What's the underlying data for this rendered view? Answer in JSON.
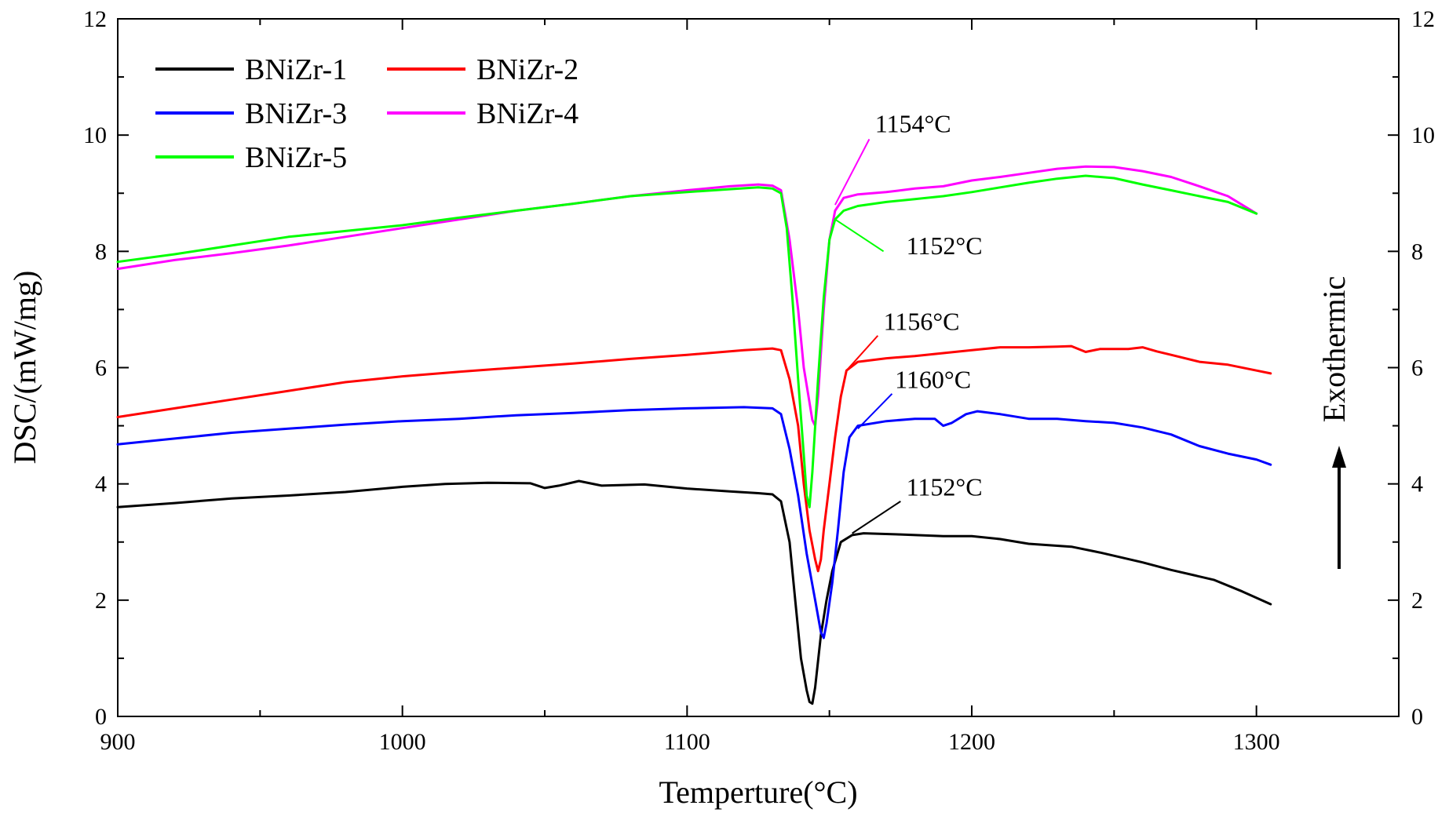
{
  "chart_data": {
    "type": "line",
    "title": "",
    "xlabel": "Temperture(°C)",
    "ylabel": "DSC/(mW/mg)",
    "xlim": [
      900,
      1350
    ],
    "ylim": [
      0,
      12
    ],
    "x_ticks": [
      900,
      1000,
      1100,
      1200,
      1300
    ],
    "y_ticks": [
      0,
      2,
      4,
      6,
      8,
      10,
      12
    ],
    "y_tick_labels": [
      "0",
      "2",
      "4",
      "6",
      "8",
      "10",
      "12"
    ],
    "x_tick_labels": [
      "900",
      "1000",
      "1100",
      "1200",
      "1300"
    ],
    "grid": false,
    "legend_position": "top-left",
    "right_axis_label": "Exothermic",
    "series": [
      {
        "name": "BNiZr-1",
        "color": "#000000",
        "points": [
          [
            900,
            3.6
          ],
          [
            920,
            3.67
          ],
          [
            940,
            3.75
          ],
          [
            960,
            3.8
          ],
          [
            980,
            3.86
          ],
          [
            1000,
            3.95
          ],
          [
            1015,
            4.0
          ],
          [
            1030,
            4.02
          ],
          [
            1045,
            4.01
          ],
          [
            1050,
            3.93
          ],
          [
            1055,
            3.97
          ],
          [
            1062,
            4.05
          ],
          [
            1070,
            3.97
          ],
          [
            1085,
            3.99
          ],
          [
            1100,
            3.92
          ],
          [
            1115,
            3.87
          ],
          [
            1125,
            3.84
          ],
          [
            1130,
            3.82
          ],
          [
            1133,
            3.7
          ],
          [
            1136,
            3.0
          ],
          [
            1138,
            2.0
          ],
          [
            1140,
            1.0
          ],
          [
            1142,
            0.45
          ],
          [
            1143,
            0.25
          ],
          [
            1144,
            0.22
          ],
          [
            1145,
            0.5
          ],
          [
            1147,
            1.4
          ],
          [
            1149,
            2.0
          ],
          [
            1151,
            2.5
          ],
          [
            1154,
            3.0
          ],
          [
            1158,
            3.12
          ],
          [
            1162,
            3.15
          ],
          [
            1175,
            3.13
          ],
          [
            1190,
            3.1
          ],
          [
            1200,
            3.1
          ],
          [
            1210,
            3.05
          ],
          [
            1220,
            2.97
          ],
          [
            1235,
            2.92
          ],
          [
            1245,
            2.82
          ],
          [
            1260,
            2.65
          ],
          [
            1270,
            2.52
          ],
          [
            1285,
            2.35
          ],
          [
            1295,
            2.15
          ],
          [
            1305,
            1.93
          ]
        ]
      },
      {
        "name": "BNiZr-2",
        "color": "#ff0000",
        "points": [
          [
            900,
            5.15
          ],
          [
            920,
            5.3
          ],
          [
            940,
            5.45
          ],
          [
            960,
            5.6
          ],
          [
            980,
            5.75
          ],
          [
            1000,
            5.85
          ],
          [
            1020,
            5.93
          ],
          [
            1040,
            6.0
          ],
          [
            1060,
            6.07
          ],
          [
            1080,
            6.15
          ],
          [
            1100,
            6.22
          ],
          [
            1120,
            6.3
          ],
          [
            1130,
            6.33
          ],
          [
            1133,
            6.3
          ],
          [
            1136,
            5.8
          ],
          [
            1139,
            5.0
          ],
          [
            1141,
            4.0
          ],
          [
            1143,
            3.2
          ],
          [
            1145,
            2.7
          ],
          [
            1146,
            2.5
          ],
          [
            1147,
            2.7
          ],
          [
            1148,
            3.2
          ],
          [
            1150,
            4.0
          ],
          [
            1152,
            4.8
          ],
          [
            1154,
            5.5
          ],
          [
            1156,
            5.95
          ],
          [
            1160,
            6.1
          ],
          [
            1170,
            6.16
          ],
          [
            1180,
            6.2
          ],
          [
            1190,
            6.25
          ],
          [
            1200,
            6.3
          ],
          [
            1210,
            6.35
          ],
          [
            1220,
            6.35
          ],
          [
            1230,
            6.36
          ],
          [
            1235,
            6.37
          ],
          [
            1240,
            6.27
          ],
          [
            1245,
            6.32
          ],
          [
            1255,
            6.32
          ],
          [
            1260,
            6.35
          ],
          [
            1265,
            6.28
          ],
          [
            1270,
            6.22
          ],
          [
            1280,
            6.1
          ],
          [
            1290,
            6.05
          ],
          [
            1300,
            5.95
          ],
          [
            1305,
            5.9
          ]
        ]
      },
      {
        "name": "BNiZr-3",
        "color": "#0000ff",
        "points": [
          [
            900,
            4.68
          ],
          [
            920,
            4.78
          ],
          [
            940,
            4.88
          ],
          [
            960,
            4.95
          ],
          [
            980,
            5.02
          ],
          [
            1000,
            5.08
          ],
          [
            1020,
            5.12
          ],
          [
            1040,
            5.18
          ],
          [
            1060,
            5.22
          ],
          [
            1080,
            5.27
          ],
          [
            1100,
            5.3
          ],
          [
            1120,
            5.32
          ],
          [
            1130,
            5.3
          ],
          [
            1133,
            5.2
          ],
          [
            1136,
            4.6
          ],
          [
            1139,
            3.8
          ],
          [
            1142,
            2.8
          ],
          [
            1145,
            2.0
          ],
          [
            1147,
            1.45
          ],
          [
            1148,
            1.35
          ],
          [
            1149,
            1.6
          ],
          [
            1151,
            2.3
          ],
          [
            1153,
            3.2
          ],
          [
            1155,
            4.2
          ],
          [
            1157,
            4.8
          ],
          [
            1160,
            5.0
          ],
          [
            1170,
            5.08
          ],
          [
            1180,
            5.12
          ],
          [
            1187,
            5.12
          ],
          [
            1190,
            5.0
          ],
          [
            1193,
            5.05
          ],
          [
            1198,
            5.2
          ],
          [
            1202,
            5.25
          ],
          [
            1210,
            5.2
          ],
          [
            1220,
            5.12
          ],
          [
            1230,
            5.12
          ],
          [
            1240,
            5.08
          ],
          [
            1250,
            5.05
          ],
          [
            1260,
            4.97
          ],
          [
            1270,
            4.85
          ],
          [
            1280,
            4.65
          ],
          [
            1290,
            4.52
          ],
          [
            1300,
            4.42
          ],
          [
            1305,
            4.33
          ]
        ]
      },
      {
        "name": "BNiZr-4",
        "color": "#ff00ff",
        "points": [
          [
            900,
            7.7
          ],
          [
            920,
            7.85
          ],
          [
            940,
            7.97
          ],
          [
            960,
            8.1
          ],
          [
            980,
            8.25
          ],
          [
            1000,
            8.4
          ],
          [
            1020,
            8.55
          ],
          [
            1040,
            8.7
          ],
          [
            1060,
            8.82
          ],
          [
            1080,
            8.95
          ],
          [
            1100,
            9.05
          ],
          [
            1115,
            9.12
          ],
          [
            1125,
            9.15
          ],
          [
            1130,
            9.13
          ],
          [
            1133,
            9.05
          ],
          [
            1136,
            8.2
          ],
          [
            1139,
            7.0
          ],
          [
            1141,
            6.0
          ],
          [
            1143,
            5.4
          ],
          [
            1144,
            5.1
          ],
          [
            1145,
            5.0
          ],
          [
            1146,
            5.5
          ],
          [
            1148,
            7.0
          ],
          [
            1150,
            8.2
          ],
          [
            1152,
            8.7
          ],
          [
            1155,
            8.92
          ],
          [
            1160,
            8.98
          ],
          [
            1170,
            9.02
          ],
          [
            1180,
            9.08
          ],
          [
            1190,
            9.12
          ],
          [
            1200,
            9.22
          ],
          [
            1210,
            9.28
          ],
          [
            1220,
            9.35
          ],
          [
            1230,
            9.42
          ],
          [
            1240,
            9.46
          ],
          [
            1250,
            9.45
          ],
          [
            1260,
            9.38
          ],
          [
            1270,
            9.28
          ],
          [
            1280,
            9.12
          ],
          [
            1290,
            8.95
          ],
          [
            1300,
            8.65
          ]
        ]
      },
      {
        "name": "BNiZr-5",
        "color": "#00ff00",
        "points": [
          [
            900,
            7.82
          ],
          [
            920,
            7.95
          ],
          [
            940,
            8.1
          ],
          [
            960,
            8.25
          ],
          [
            980,
            8.35
          ],
          [
            1000,
            8.45
          ],
          [
            1020,
            8.58
          ],
          [
            1040,
            8.7
          ],
          [
            1060,
            8.82
          ],
          [
            1080,
            8.95
          ],
          [
            1100,
            9.02
          ],
          [
            1115,
            9.07
          ],
          [
            1125,
            9.1
          ],
          [
            1130,
            9.08
          ],
          [
            1133,
            9.0
          ],
          [
            1135,
            8.4
          ],
          [
            1137,
            7.2
          ],
          [
            1139,
            5.8
          ],
          [
            1141,
            4.5
          ],
          [
            1142,
            3.8
          ],
          [
            1143,
            3.6
          ],
          [
            1144,
            4.2
          ],
          [
            1146,
            5.8
          ],
          [
            1148,
            7.2
          ],
          [
            1150,
            8.2
          ],
          [
            1152,
            8.55
          ],
          [
            1155,
            8.7
          ],
          [
            1160,
            8.78
          ],
          [
            1170,
            8.85
          ],
          [
            1180,
            8.9
          ],
          [
            1190,
            8.95
          ],
          [
            1200,
            9.02
          ],
          [
            1210,
            9.1
          ],
          [
            1220,
            9.18
          ],
          [
            1230,
            9.25
          ],
          [
            1240,
            9.3
          ],
          [
            1250,
            9.26
          ],
          [
            1260,
            9.15
          ],
          [
            1270,
            9.05
          ],
          [
            1280,
            8.95
          ],
          [
            1290,
            8.85
          ],
          [
            1300,
            8.65
          ]
        ]
      }
    ],
    "annotations": [
      {
        "label": "1154°C",
        "color": "#ff00ff",
        "from": [
          1152,
          8.8
        ],
        "to": [
          1164,
          9.93
        ],
        "text_at": [
          1166,
          10.05
        ]
      },
      {
        "label": "1152°C",
        "color": "#00ff00",
        "from": [
          1152,
          8.55
        ],
        "to": [
          1169,
          8.0
        ],
        "text_at": [
          1177,
          7.95
        ]
      },
      {
        "label": "1156°C",
        "color": "#ff0000",
        "from": [
          1156,
          5.95
        ],
        "to": [
          1167,
          6.55
        ],
        "text_at": [
          1169,
          6.65
        ]
      },
      {
        "label": "1160°C",
        "color": "#0000ff",
        "from": [
          1160,
          4.95
        ],
        "to": [
          1172,
          5.55
        ],
        "text_at": [
          1173,
          5.65
        ]
      },
      {
        "label": "1152°C",
        "color": "#000000",
        "from": [
          1158,
          3.15
        ],
        "to": [
          1175,
          3.7
        ],
        "text_at": [
          1177,
          3.8
        ]
      }
    ]
  }
}
